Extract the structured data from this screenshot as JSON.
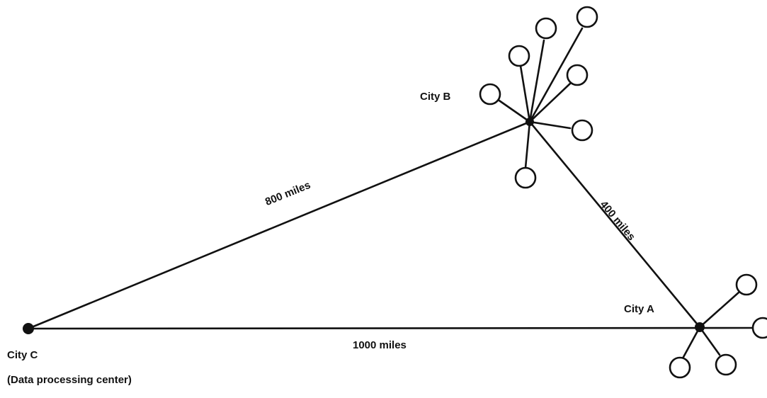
{
  "colors": {
    "line": "#111111",
    "background": "#ffffff"
  },
  "cities": {
    "a": {
      "name": "City A"
    },
    "b": {
      "name": "City B"
    },
    "c": {
      "name": "City C",
      "subtitle": "(Data processing center)"
    }
  },
  "links": {
    "c_to_b": "800 miles",
    "b_to_a": "400 miles",
    "c_to_a": "1000 miles"
  }
}
